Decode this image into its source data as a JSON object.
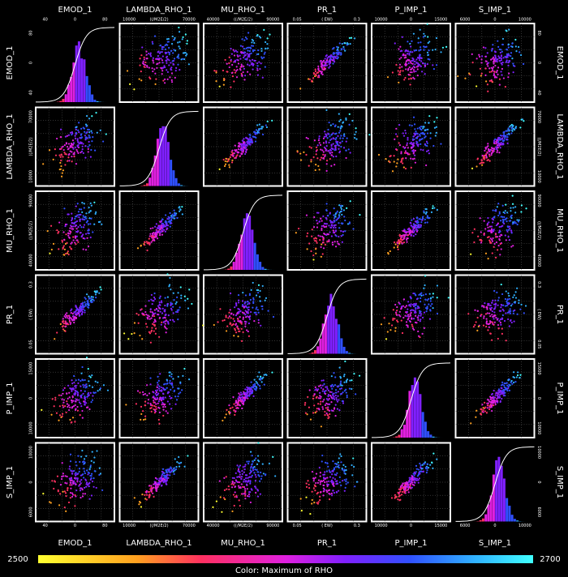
{
  "variables": [
    {
      "name": "EMOD_1",
      "ticks": [
        "40",
        "0",
        "80"
      ]
    },
    {
      "name": "LAMBDA_RHO_1",
      "ticks": [
        "10000",
        "((/M2E/2)",
        "70000"
      ]
    },
    {
      "name": "MU_RHO_1",
      "ticks": [
        "40000",
        "((/M2E/2)",
        "90000"
      ]
    },
    {
      "name": "PR_1",
      "ticks": [
        "0.05",
        "( EW)",
        "0.3"
      ]
    },
    {
      "name": "P_IMP_1",
      "ticks": [
        "10000",
        "0",
        "15000"
      ]
    },
    {
      "name": "S_IMP_1",
      "ticks": [
        "6000",
        "0",
        "10000"
      ]
    }
  ],
  "colorbar": {
    "min": "2500",
    "max": "2700",
    "label": "Color: Maximum of RHO"
  }
}
